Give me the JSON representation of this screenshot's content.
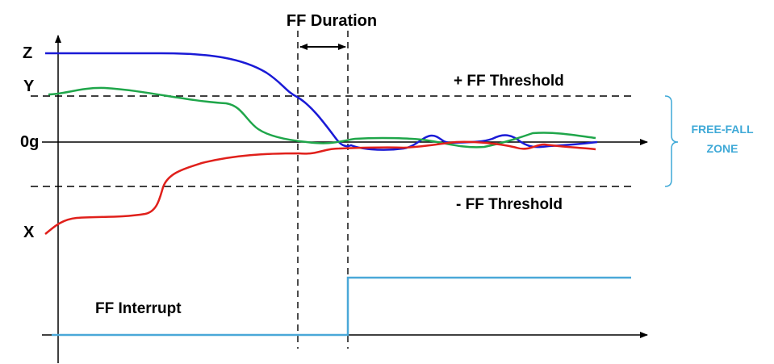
{
  "title": "FF Duration",
  "axis_labels": {
    "z": "Z",
    "y": "Y",
    "zero": "0g",
    "x": "X"
  },
  "thresholds": {
    "positive": "+ FF Threshold",
    "negative": "- FF Threshold"
  },
  "zone": {
    "line1": "FREE-FALL",
    "line2": "ZONE"
  },
  "interrupt_label": "FF Interrupt",
  "colors": {
    "z_axis": "#1a1ad6",
    "y_axis": "#1fa64a",
    "x_axis": "#e0201b",
    "interrupt": "#4aa8d8",
    "zone": "#3fa9d7",
    "axes": "#000000"
  }
}
